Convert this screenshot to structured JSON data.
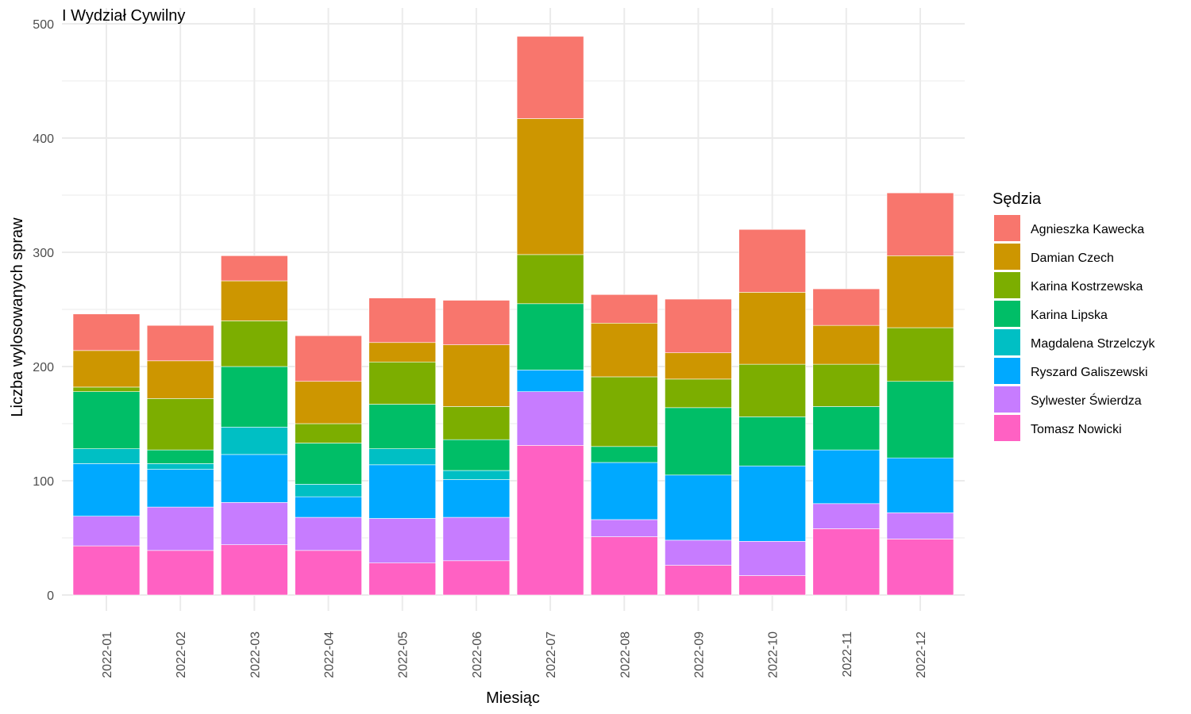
{
  "chart_data": {
    "type": "bar",
    "stacked": true,
    "title": "I Wydział Cywilny",
    "xlabel": "Miesiąc",
    "ylabel": "Liczba wylosowanych spraw",
    "ylim": [
      0,
      500
    ],
    "yticks": [
      0,
      100,
      200,
      300,
      400,
      500
    ],
    "grid": true,
    "legend": {
      "title": "Sędzia",
      "position": "right"
    },
    "categories": [
      "2022-01",
      "2022-02",
      "2022-03",
      "2022-04",
      "2022-05",
      "2022-06",
      "2022-07",
      "2022-08",
      "2022-09",
      "2022-10",
      "2022-11",
      "2022-12"
    ],
    "series": [
      {
        "name": "Tomasz Nowicki",
        "color": "#FF61C3",
        "values": [
          43,
          39,
          44,
          39,
          28,
          30,
          131,
          51,
          26,
          17,
          58,
          49
        ]
      },
      {
        "name": "Sylwester Świerdza",
        "color": "#C77CFF",
        "values": [
          26,
          38,
          37,
          29,
          39,
          38,
          47,
          15,
          22,
          30,
          22,
          23
        ]
      },
      {
        "name": "Ryszard Galiszewski",
        "color": "#00A9FF",
        "values": [
          46,
          33,
          42,
          18,
          47,
          33,
          19,
          50,
          57,
          66,
          47,
          48
        ]
      },
      {
        "name": "Magdalena Strzelczyk",
        "color": "#00BFC4",
        "values": [
          13,
          5,
          24,
          11,
          14,
          8,
          0,
          0,
          0,
          0,
          0,
          0
        ]
      },
      {
        "name": "Karina Lipska",
        "color": "#00BE67",
        "values": [
          50,
          12,
          53,
          36,
          39,
          27,
          58,
          14,
          59,
          43,
          38,
          67
        ]
      },
      {
        "name": "Karina Kostrzewska",
        "color": "#7CAE00",
        "values": [
          4,
          45,
          40,
          17,
          37,
          29,
          43,
          61,
          25,
          46,
          37,
          47
        ]
      },
      {
        "name": "Damian Czech",
        "color": "#CD9600",
        "values": [
          32,
          33,
          35,
          37,
          17,
          54,
          119,
          47,
          23,
          63,
          34,
          63
        ]
      },
      {
        "name": "Agnieszka Kawecka",
        "color": "#F8766D",
        "values": [
          32,
          31,
          22,
          40,
          39,
          39,
          72,
          25,
          47,
          55,
          32,
          55
        ]
      }
    ],
    "legend_order": [
      "Agnieszka Kawecka",
      "Damian Czech",
      "Karina Kostrzewska",
      "Karina Lipska",
      "Magdalena Strzelczyk",
      "Ryszard Galiszewski",
      "Sylwester Świerdza",
      "Tomasz Nowicki"
    ],
    "colors": {
      "gridline": "#EBEBEB",
      "tick_text": "#4D4D4D",
      "background": "#FFFFFF"
    }
  }
}
